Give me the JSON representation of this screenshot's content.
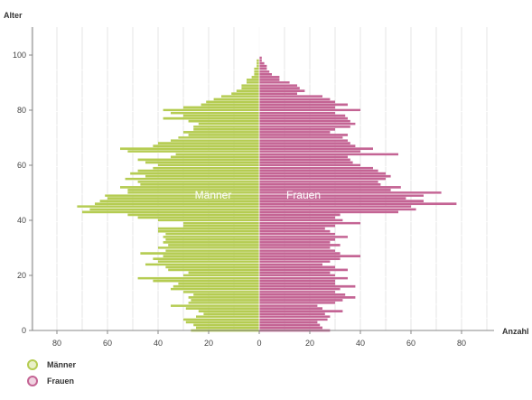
{
  "chart_data": {
    "type": "bar",
    "orientation": "horizontal",
    "ylabel": "Alter",
    "xlabel": "Anzahl",
    "ylim": [
      0,
      105
    ],
    "xlim": [
      -90,
      90
    ],
    "y_ticks": [
      "0",
      "20",
      "40",
      "60",
      "80",
      "100"
    ],
    "x_ticks": [
      "80",
      "60",
      "40",
      "20",
      "0",
      "20",
      "40",
      "60",
      "80"
    ],
    "grid": "vertical",
    "legend_position": "bottom-left",
    "ages": [
      0,
      1,
      2,
      3,
      4,
      5,
      6,
      7,
      8,
      9,
      10,
      11,
      12,
      13,
      14,
      15,
      16,
      17,
      18,
      19,
      20,
      21,
      22,
      23,
      24,
      25,
      26,
      27,
      28,
      29,
      30,
      31,
      32,
      33,
      34,
      35,
      36,
      37,
      38,
      39,
      40,
      41,
      42,
      43,
      44,
      45,
      46,
      47,
      48,
      49,
      50,
      51,
      52,
      53,
      54,
      55,
      56,
      57,
      58,
      59,
      60,
      61,
      62,
      63,
      64,
      65,
      66,
      67,
      68,
      69,
      70,
      71,
      72,
      73,
      74,
      75,
      76,
      77,
      78,
      79,
      80,
      81,
      82,
      83,
      84,
      85,
      86,
      87,
      88,
      89,
      90,
      91,
      92,
      93,
      94,
      95,
      96,
      97,
      98,
      99,
      100
    ],
    "series": [
      {
        "name": "Männer",
        "color": "#b5cc52",
        "values": [
          27,
          25,
          26,
          29,
          30,
          25,
          22,
          24,
          29,
          35,
          28,
          27,
          28,
          26,
          30,
          35,
          34,
          32,
          42,
          48,
          30,
          28,
          36,
          37,
          45,
          40,
          42,
          38,
          47,
          37,
          40,
          36,
          38,
          37,
          38,
          37,
          40,
          40,
          30,
          30,
          40,
          48,
          52,
          70,
          67,
          72,
          65,
          63,
          60,
          61,
          52,
          52,
          55,
          47,
          48,
          53,
          45,
          51,
          48,
          42,
          40,
          45,
          48,
          35,
          33,
          52,
          55,
          42,
          40,
          35,
          32,
          28,
          30,
          26,
          26,
          24,
          28,
          38,
          30,
          35,
          38,
          30,
          23,
          21,
          18,
          15,
          11,
          9,
          7,
          7,
          5,
          5,
          3,
          2,
          2,
          2,
          1,
          1,
          1,
          0,
          0
        ]
      },
      {
        "name": "Frauen",
        "color": "#c46494",
        "values": [
          28,
          25,
          24,
          23,
          27,
          28,
          26,
          33,
          25,
          23,
          30,
          33,
          38,
          34,
          30,
          32,
          38,
          30,
          30,
          35,
          30,
          28,
          35,
          30,
          25,
          28,
          32,
          40,
          32,
          30,
          28,
          32,
          28,
          30,
          35,
          30,
          28,
          26,
          30,
          40,
          33,
          30,
          32,
          55,
          62,
          60,
          78,
          65,
          58,
          65,
          72,
          52,
          56,
          48,
          47,
          50,
          52,
          50,
          47,
          45,
          40,
          37,
          36,
          35,
          55,
          40,
          45,
          38,
          36,
          35,
          33,
          35,
          28,
          30,
          36,
          38,
          36,
          35,
          34,
          30,
          40,
          30,
          35,
          30,
          28,
          25,
          15,
          18,
          16,
          15,
          12,
          8,
          8,
          5,
          4,
          3,
          3,
          2,
          1,
          1,
          0
        ]
      }
    ],
    "annotations": [
      "Männer",
      "Frauen"
    ]
  }
}
